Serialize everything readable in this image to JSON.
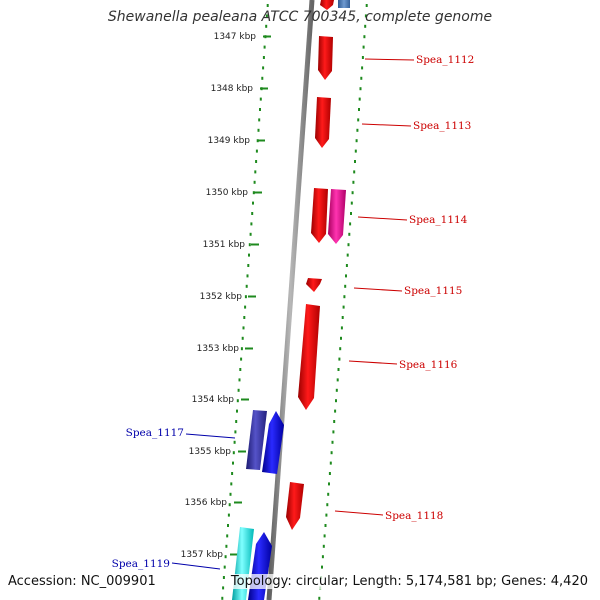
{
  "title": "Shewanella pealeana ATCC 700345, complete genome",
  "footer": {
    "accession": "Accession: NC_009901",
    "topology": "Topology: circular; Length: 5,174,581 bp; Genes: 4,420"
  },
  "ticks": [
    "1347 kbp",
    "1348 kbp",
    "1349 kbp",
    "1350 kbp",
    "1351 kbp",
    "1352 kbp",
    "1353 kbp",
    "1354 kbp",
    "1355 kbp",
    "1356 kbp",
    "1357 kbp"
  ],
  "genes": [
    {
      "name": "Spea_1112",
      "color": "#cc0000"
    },
    {
      "name": "Spea_1113",
      "color": "#cc0000"
    },
    {
      "name": "Spea_1114",
      "color": "#cc0000"
    },
    {
      "name": "Spea_1115",
      "color": "#cc0000"
    },
    {
      "name": "Spea_1116",
      "color": "#cc0000"
    },
    {
      "name": "Spea_1117",
      "color": "#0000aa"
    },
    {
      "name": "Spea_1118",
      "color": "#cc0000"
    },
    {
      "name": "Spea_1119",
      "color": "#0000aa"
    }
  ],
  "colors": {
    "grid": "#1e8a1e",
    "backbone": "#8a8a8a",
    "forward_gene": "#ff0000",
    "magenta_gene": "#ee1199",
    "purple_gene": "#3d3ab0",
    "blue_gene": "#0000ff",
    "cyan_gene": "#00ffff",
    "steel_gene": "#4a78b8"
  }
}
